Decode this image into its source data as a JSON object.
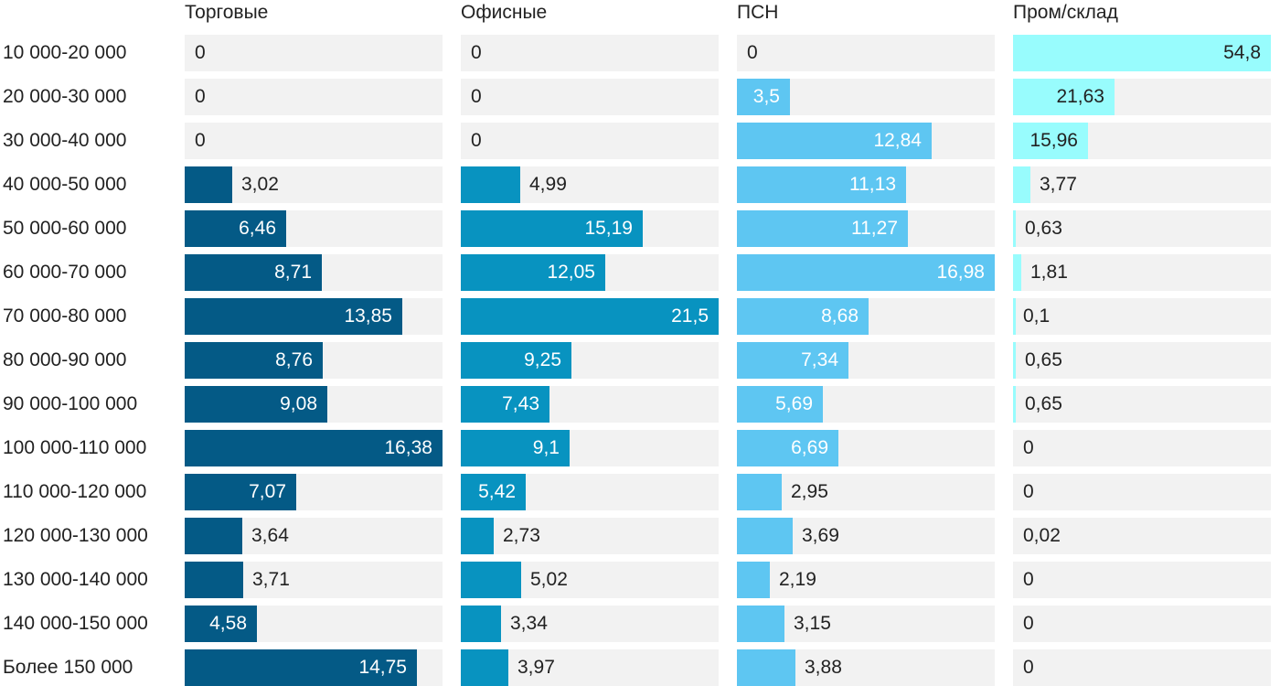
{
  "chart_data": {
    "type": "bar",
    "orientation": "horizontal",
    "layout": "small-multiples",
    "categories": [
      "10 000-20 000",
      "20 000-30 000",
      "30 000-40 000",
      "40 000-50 000",
      "50 000-60 000",
      "60 000-70 000",
      "70 000-80 000",
      "80 000-90 000",
      "90 000-100 000",
      "100 000-110 000",
      "110 000-120 000",
      "120 000-130 000",
      "130 000-140 000",
      "140 000-150 000",
      "Более 150 000"
    ],
    "series": [
      {
        "name": "Торговые",
        "color": "#045a86",
        "scale_max": 16.38,
        "values": [
          0,
          0,
          0,
          3.02,
          6.46,
          8.71,
          13.85,
          8.76,
          9.08,
          16.38,
          7.07,
          3.64,
          3.71,
          4.58,
          14.75
        ],
        "labels": [
          "0",
          "0",
          "0",
          "3,02",
          "6,46",
          "8,71",
          "13,85",
          "8,76",
          "9,08",
          "16,38",
          "7,07",
          "3,64",
          "3,71",
          "4,58",
          "14,75"
        ]
      },
      {
        "name": "Офисные",
        "color": "#0893c0",
        "scale_max": 21.5,
        "values": [
          0,
          0,
          0,
          4.99,
          15.19,
          12.05,
          21.5,
          9.25,
          7.43,
          9.1,
          5.42,
          2.73,
          5.02,
          3.34,
          3.97
        ],
        "labels": [
          "0",
          "0",
          "0",
          "4,99",
          "15,19",
          "12,05",
          "21,5",
          "9,25",
          "7,43",
          "9,1",
          "5,42",
          "2,73",
          "5,02",
          "3,34",
          "3,97"
        ]
      },
      {
        "name": "ПСН",
        "color": "#5ec6f2",
        "scale_max": 16.98,
        "values": [
          0,
          3.5,
          12.84,
          11.13,
          11.27,
          16.98,
          8.68,
          7.34,
          5.69,
          6.69,
          2.95,
          3.69,
          2.19,
          3.15,
          3.88
        ],
        "labels": [
          "0",
          "3,5",
          "12,84",
          "11,13",
          "11,27",
          "16,98",
          "8,68",
          "7,34",
          "5,69",
          "6,69",
          "2,95",
          "3,69",
          "2,19",
          "3,15",
          "3,88"
        ]
      },
      {
        "name": "Пром/склад",
        "color": "#98fcfd",
        "scale_max": 54.8,
        "values": [
          54.8,
          21.63,
          15.96,
          3.77,
          0.63,
          1.81,
          0.1,
          0.65,
          0.65,
          0,
          0,
          0.02,
          0,
          0,
          0
        ],
        "labels": [
          "54,8",
          "21,63",
          "15,96",
          "3,77",
          "0,63",
          "1,81",
          "0,1",
          "0,65",
          "0,65",
          "0",
          "0",
          "0,02",
          "0",
          "0",
          "0"
        ]
      }
    ]
  }
}
